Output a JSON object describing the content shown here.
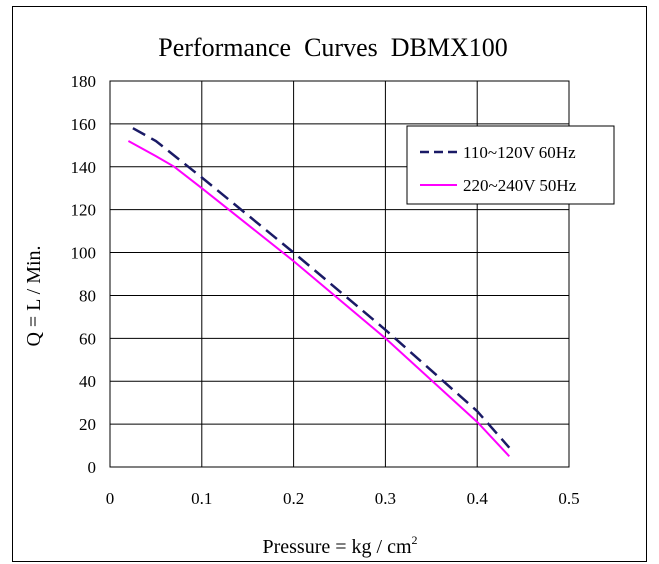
{
  "chart_data": {
    "type": "line",
    "title": "Performance  Curves  DBMX100",
    "xlabel": "Pressure = kg / cm",
    "xlabel_superscript": "2",
    "ylabel": "Q = L / Min.",
    "xlim": [
      0,
      0.5
    ],
    "ylim": [
      0,
      180
    ],
    "x_ticks": [
      0,
      0.1,
      0.2,
      0.3,
      0.4,
      0.5
    ],
    "x_tick_labels": [
      "0",
      "0.1",
      "0.2",
      "0.3",
      "0.4",
      "0.5"
    ],
    "y_ticks": [
      0,
      20,
      40,
      60,
      80,
      100,
      120,
      140,
      160,
      180
    ],
    "y_tick_labels": [
      "0",
      "20",
      "40",
      "60",
      "80",
      "100",
      "120",
      "140",
      "160",
      "180"
    ],
    "grid": true,
    "legend_position": "top-right",
    "series": [
      {
        "name": "110~120V 60Hz",
        "color": "#1a1a66",
        "style": "dashed",
        "x": [
          0.025,
          0.05,
          0.1,
          0.2,
          0.3,
          0.4,
          0.435
        ],
        "y": [
          158,
          152,
          135,
          100,
          64,
          26,
          9
        ]
      },
      {
        "name": "220~240V 50Hz",
        "color": "#ff00ff",
        "style": "solid",
        "x": [
          0.02,
          0.05,
          0.07,
          0.1,
          0.2,
          0.3,
          0.4,
          0.435
        ],
        "y": [
          152,
          145,
          140,
          130,
          96,
          60,
          21,
          5
        ]
      }
    ]
  }
}
